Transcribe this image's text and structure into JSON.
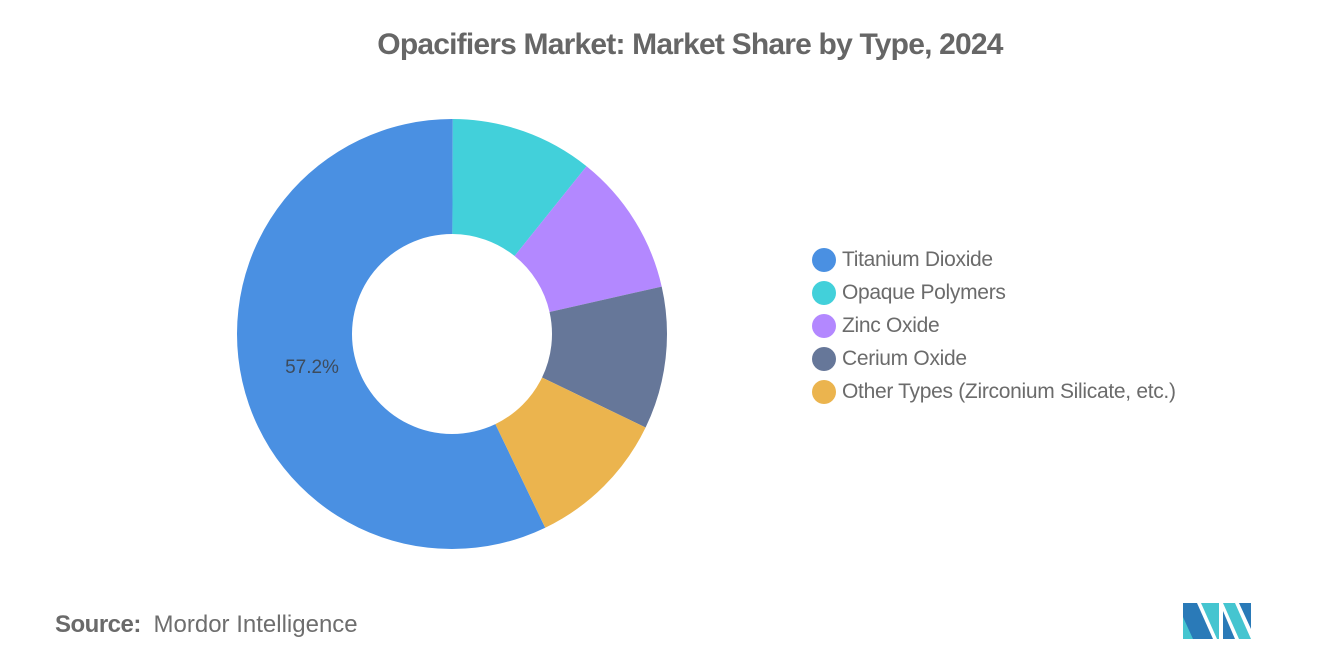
{
  "chart_data": {
    "type": "pie",
    "variant": "donut",
    "title": "Opacifiers Market: Market Share by Type, 2024",
    "categories": [
      "Titanium Dioxide",
      "Opaque Polymers",
      "Zinc Oxide",
      "Cerium Oxide",
      "Other Types (Zirconium Silicate, etc.)"
    ],
    "values": [
      57.2,
      10.7,
      10.7,
      10.7,
      10.7
    ],
    "colors": [
      "#4A90E2",
      "#42D0DA",
      "#B388FF",
      "#667799",
      "#EBB44E"
    ],
    "data_labels": [
      {
        "category": "Titanium Dioxide",
        "text": "57.2%"
      }
    ],
    "unit": "%",
    "legend_position": "right",
    "start_angle_deg_clockwise_from_top": 154.3,
    "grid": false
  },
  "title": "Opacifiers Market: Market Share by Type, 2024",
  "legend": {
    "items": [
      {
        "label": "Titanium Dioxide",
        "color": "#4A90E2"
      },
      {
        "label": "Opaque Polymers",
        "color": "#42D0DA"
      },
      {
        "label": "Zinc Oxide",
        "color": "#B388FF"
      },
      {
        "label": "Cerium Oxide",
        "color": "#667799"
      },
      {
        "label": "Other Types (Zirconium Silicate, etc.)",
        "color": "#EBB44E"
      }
    ]
  },
  "labels": {
    "titanium_dioxide": "57.2%"
  },
  "source": {
    "key": "Source:",
    "value": "Mordor Intelligence"
  },
  "logo": {
    "name": "Mordor Intelligence logo",
    "colors": [
      "#2A7AB8",
      "#45C5D0"
    ]
  }
}
